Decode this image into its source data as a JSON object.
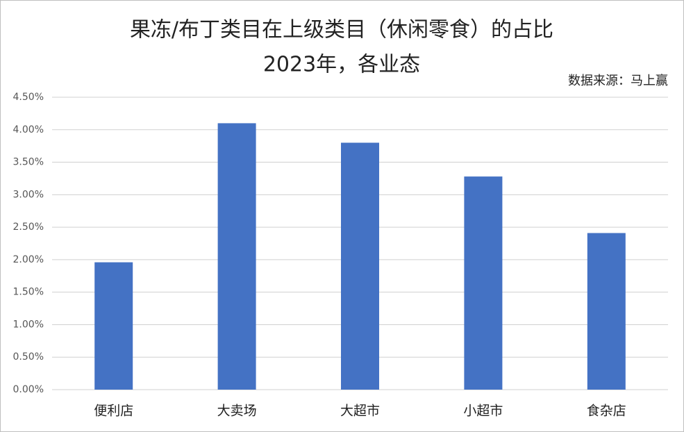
{
  "chart_data": {
    "type": "bar",
    "title": "果冻/布丁类目在上级类目（休闲零食）的占比",
    "subtitle": "2023年，各业态",
    "source": "数据来源：马上赢",
    "categories": [
      "便利店",
      "大卖场",
      "大超市",
      "小超市",
      "食杂店"
    ],
    "values": [
      1.96,
      4.1,
      3.8,
      3.28,
      2.41
    ],
    "color": "#4472c4",
    "ylim": [
      0,
      4.5
    ],
    "yticks": [
      {
        "value": 0,
        "label": "0.00%"
      },
      {
        "value": 0.5,
        "label": "0.50%"
      },
      {
        "value": 1,
        "label": "1.00%"
      },
      {
        "value": 1.5,
        "label": "1.50%"
      },
      {
        "value": 2,
        "label": "2.00%"
      },
      {
        "value": 2.5,
        "label": "2.50%"
      },
      {
        "value": 3,
        "label": "3.00%"
      },
      {
        "value": 3.5,
        "label": "3.50%"
      },
      {
        "value": 4,
        "label": "4.00%"
      },
      {
        "value": 4.5,
        "label": "4.50%"
      }
    ],
    "grid": true
  }
}
